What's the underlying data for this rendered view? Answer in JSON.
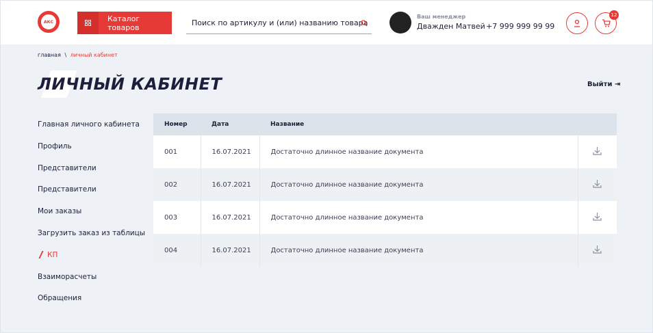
{
  "header": {
    "logo": "АКС",
    "catalog_button": "Каталог товаров",
    "search_placeholder": "Поиск по артикулу и (или) названию товара",
    "manager_label": "Ваш менеджер",
    "manager_name": "Дважден Матвей",
    "phone": "+7 999 999 99 99",
    "cart_count": "12"
  },
  "breadcrumb": {
    "home": "главная",
    "separator": "\\",
    "current": "личный кабинет"
  },
  "page": {
    "title": "ЛИЧНЫЙ КАБИНЕТ",
    "logout": "Выйти"
  },
  "sidebar": {
    "items": [
      "Главная личного кабинета",
      "Профиль",
      "Представители",
      "Представители",
      "Мои заказы",
      "Загрузить заказ из таблицы",
      "КП",
      "Взаиморасчеты",
      "Обращения"
    ],
    "active": "КП"
  },
  "table": {
    "headers": [
      "Номер",
      "Дата",
      "Название"
    ],
    "rows": [
      [
        "001",
        "16.07.2021",
        "Достаточно длинное название документа"
      ],
      [
        "002",
        "16.07.2021",
        "Достаточно длинное название документа"
      ],
      [
        "003",
        "16.07.2021",
        "Достаточно длинное название документа"
      ],
      [
        "004",
        "16.07.2021",
        "Достаточно длинное название документа"
      ]
    ]
  }
}
